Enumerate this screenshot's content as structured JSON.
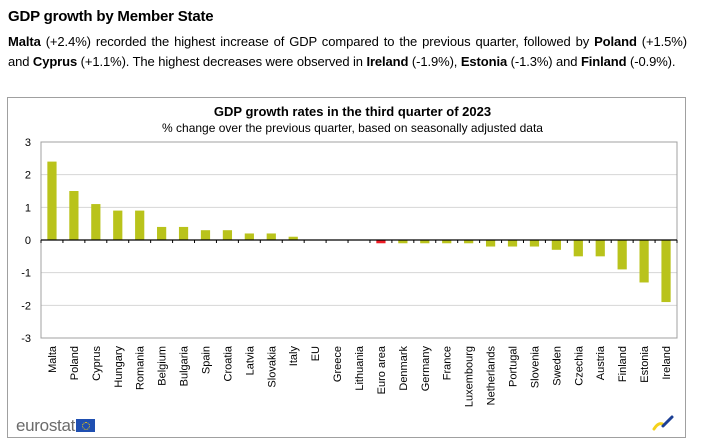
{
  "section": {
    "title": "GDP growth by Member State",
    "summary_parts": [
      {
        "text": "Malta",
        "bold": true
      },
      {
        "text": " (+2.4%) recorded the highest increase of GDP compared to the previous quarter, followed by ",
        "bold": false
      },
      {
        "text": "Poland",
        "bold": true
      },
      {
        "text": " (+1.5%) and ",
        "bold": false
      },
      {
        "text": "Cyprus",
        "bold": true
      },
      {
        "text": " (+1.1%). The highest decreases were observed in ",
        "bold": false
      },
      {
        "text": "Ireland",
        "bold": true
      },
      {
        "text": " (-1.9%), ",
        "bold": false
      },
      {
        "text": "Estonia",
        "bold": true
      },
      {
        "text": " (-1.3%) and ",
        "bold": false
      },
      {
        "text": "Finland",
        "bold": true
      },
      {
        "text": " (-0.9%).",
        "bold": false
      }
    ]
  },
  "branding": {
    "logo_text": "eurostat",
    "logo_icon": "eu-flag-icon",
    "corner_icon": "eurostat-swoosh-icon"
  },
  "chart_data": {
    "type": "bar",
    "title": "GDP growth rates in the third quarter of 2023",
    "subtitle": "% change over the previous quarter, based on seasonally adjusted data",
    "xlabel": "",
    "ylabel": "",
    "ylim": [
      -3,
      3
    ],
    "yticks": [
      3,
      2,
      1,
      0,
      -1,
      -2,
      -3
    ],
    "grid": true,
    "legend": "none",
    "categories": [
      "Malta",
      "Poland",
      "Cyprus",
      "Hungary",
      "Romania",
      "Belgium",
      "Bulgaria",
      "Spain",
      "Croatia",
      "Latvia",
      "Slovakia",
      "Italy",
      "EU",
      "Greece",
      "Lithuania",
      "Euro area",
      "Denmark",
      "Germany",
      "France",
      "Luxembourg",
      "Netherlands",
      "Portugal",
      "Slovenia",
      "Sweden",
      "Czechia",
      "Austria",
      "Finland",
      "Estonia",
      "Ireland"
    ],
    "values": [
      2.4,
      1.5,
      1.1,
      0.9,
      0.9,
      0.4,
      0.4,
      0.3,
      0.3,
      0.2,
      0.2,
      0.1,
      0.0,
      0.0,
      0.0,
      -0.1,
      -0.1,
      -0.1,
      -0.1,
      -0.1,
      -0.2,
      -0.2,
      -0.2,
      -0.3,
      -0.5,
      -0.5,
      -0.9,
      -1.3,
      -1.9
    ],
    "highlight": {
      "Euro area": "#ee1c25"
    },
    "colors": {
      "bar": "#b9c31b",
      "highlight": "#ee1c25",
      "grid": "#d6d6d6",
      "axis": "#000000",
      "frame": "#a0a0a0"
    }
  }
}
